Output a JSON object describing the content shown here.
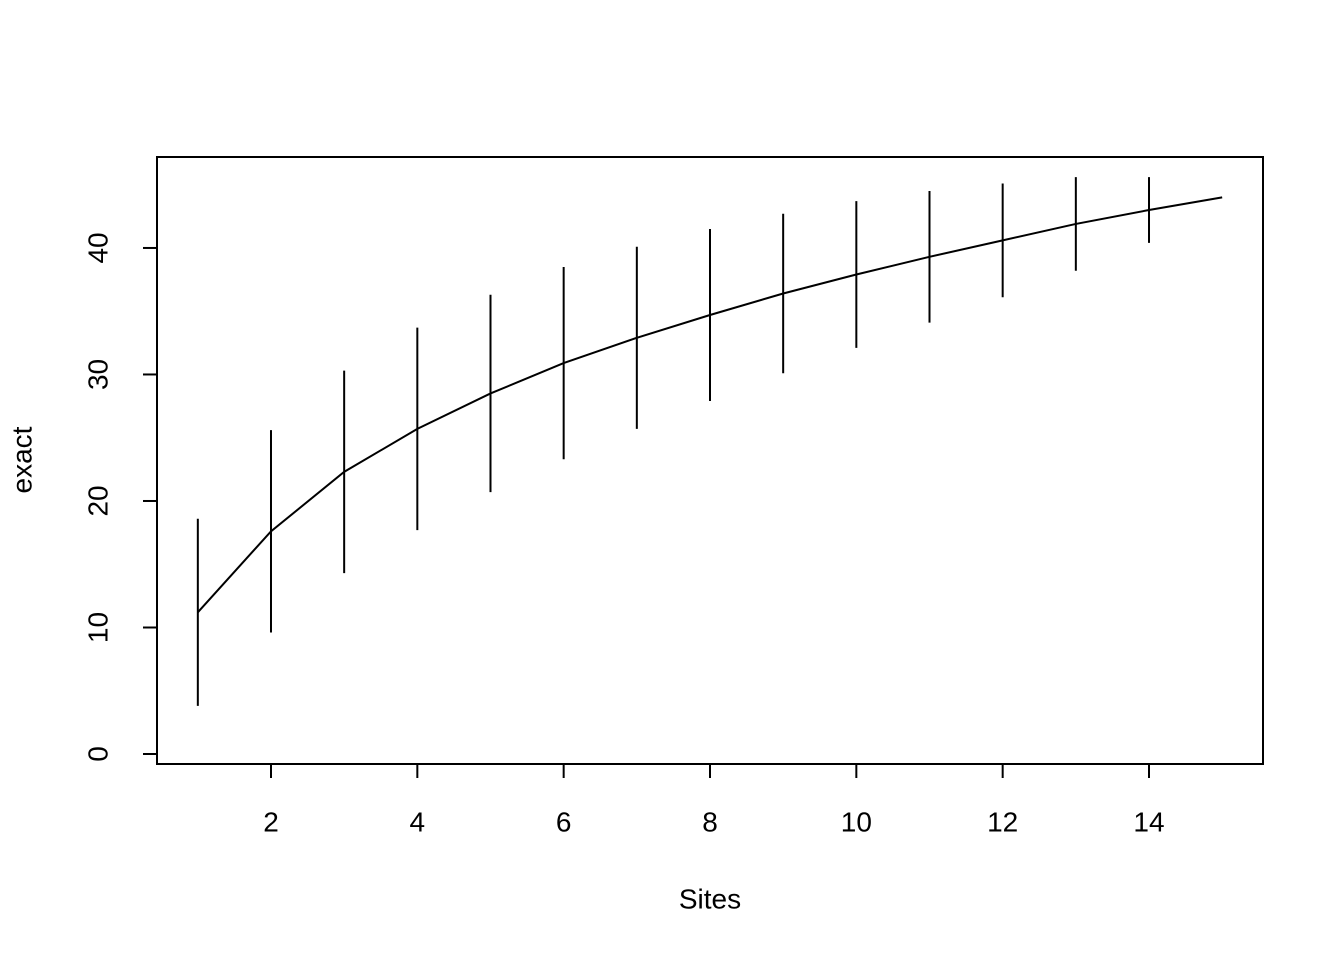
{
  "chart_data": {
    "type": "line",
    "x": [
      1,
      2,
      3,
      4,
      5,
      6,
      7,
      8,
      9,
      10,
      11,
      12,
      13,
      14,
      15
    ],
    "values": [
      11.2,
      17.6,
      22.3,
      25.7,
      28.5,
      30.9,
      32.9,
      34.7,
      36.4,
      37.9,
      39.3,
      40.6,
      41.9,
      43.0,
      44.0
    ],
    "errors": [
      7.4,
      8.0,
      8.0,
      8.0,
      7.8,
      7.6,
      7.2,
      6.8,
      6.3,
      5.8,
      5.2,
      4.5,
      3.7,
      2.6,
      0
    ],
    "color": "#000000",
    "xlabel": "Sites",
    "ylabel": "exact",
    "xlim": [
      0.442,
      15.558
    ],
    "ylim": [
      -0.79,
      47.19
    ],
    "xticks": [
      2,
      4,
      6,
      8,
      10,
      12,
      14
    ],
    "yticks": [
      0,
      10,
      20,
      30,
      40
    ]
  }
}
